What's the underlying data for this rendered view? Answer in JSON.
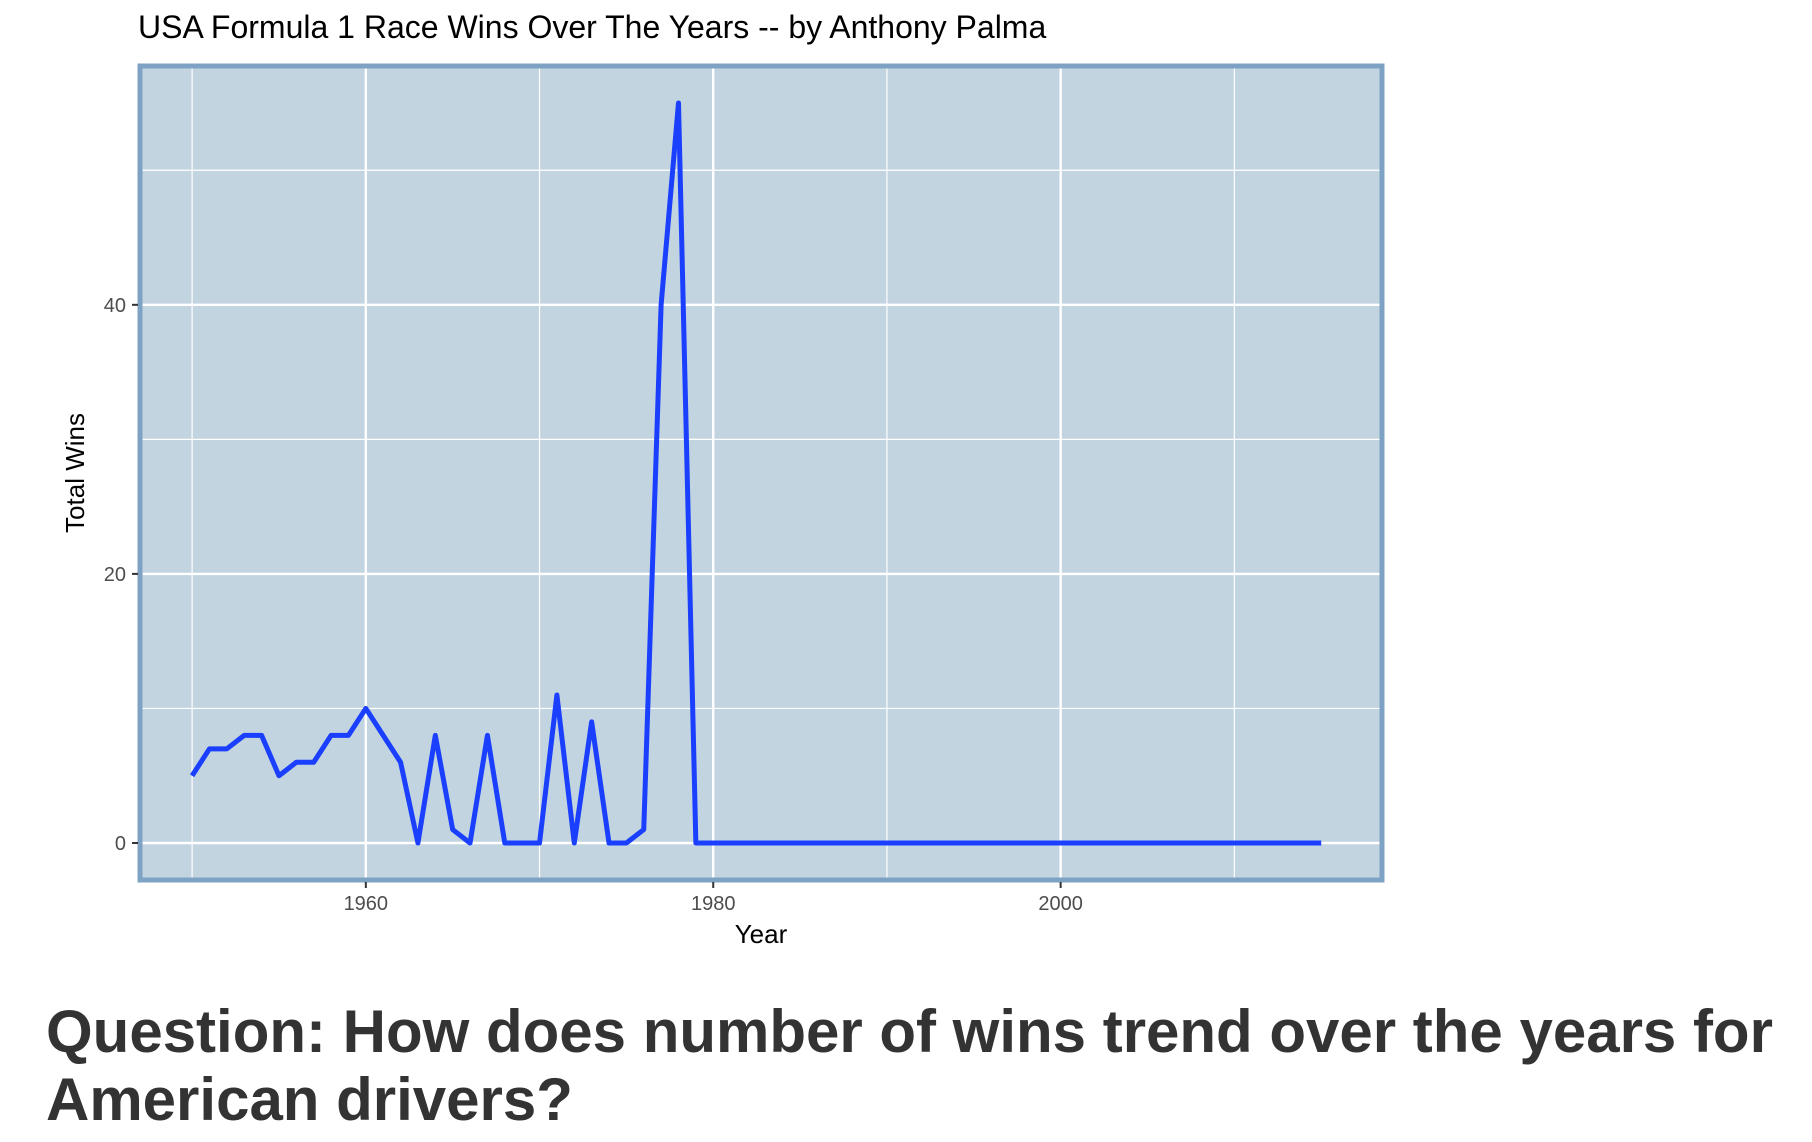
{
  "chart_data": {
    "type": "line",
    "title": "USA Formula 1 Race Wins Over The Years -- by Anthony Palma",
    "xlabel": "Year",
    "ylabel": "Total Wins",
    "xlim": [
      1947,
      2018.5
    ],
    "ylim": [
      -2.75,
      57.75
    ],
    "x_ticks": [
      1960,
      1980,
      2000
    ],
    "x_minor_ticks": [
      1950,
      1970,
      1990,
      2010
    ],
    "y_ticks": [
      0,
      20,
      40
    ],
    "y_minor_ticks": [
      10,
      30,
      50
    ],
    "grid": true,
    "colors": {
      "line": "#1a3fff",
      "panel": "#c2d4e0",
      "border": "#7ea2c3",
      "grid": "#ffffff"
    },
    "series": [
      {
        "x": [
          1950,
          1951,
          1952,
          1953,
          1954,
          1955,
          1956,
          1957,
          1958,
          1959,
          1960,
          1961,
          1962,
          1963,
          1964,
          1965,
          1966,
          1967,
          1968,
          1969,
          1970,
          1971,
          1972,
          1973,
          1974,
          1975,
          1976,
          1977,
          1978,
          1979,
          1980,
          1981,
          1982,
          1983,
          1984,
          1985,
          1986,
          1987,
          1988,
          1989,
          1990,
          1991,
          1992,
          1993,
          1994,
          1995,
          1996,
          1997,
          1998,
          1999,
          2000,
          2001,
          2002,
          2003,
          2004,
          2005,
          2006,
          2007,
          2008,
          2009,
          2010,
          2011,
          2012,
          2013,
          2014,
          2015
        ],
        "values": [
          5,
          7,
          7,
          8,
          8,
          5,
          6,
          6,
          8,
          8,
          10,
          8,
          6,
          0,
          8,
          1,
          0,
          8,
          0,
          0,
          0,
          11,
          0,
          9,
          0,
          0,
          1,
          40,
          55,
          0,
          0,
          0,
          0,
          0,
          0,
          0,
          0,
          0,
          0,
          0,
          0,
          0,
          0,
          0,
          0,
          0,
          0,
          0,
          0,
          0,
          0,
          0,
          0,
          0,
          0,
          0,
          0,
          0,
          0,
          0,
          0,
          0,
          0,
          0,
          0,
          0
        ]
      }
    ]
  },
  "question": "Question: How does number of wins trend over the years for American drivers?"
}
